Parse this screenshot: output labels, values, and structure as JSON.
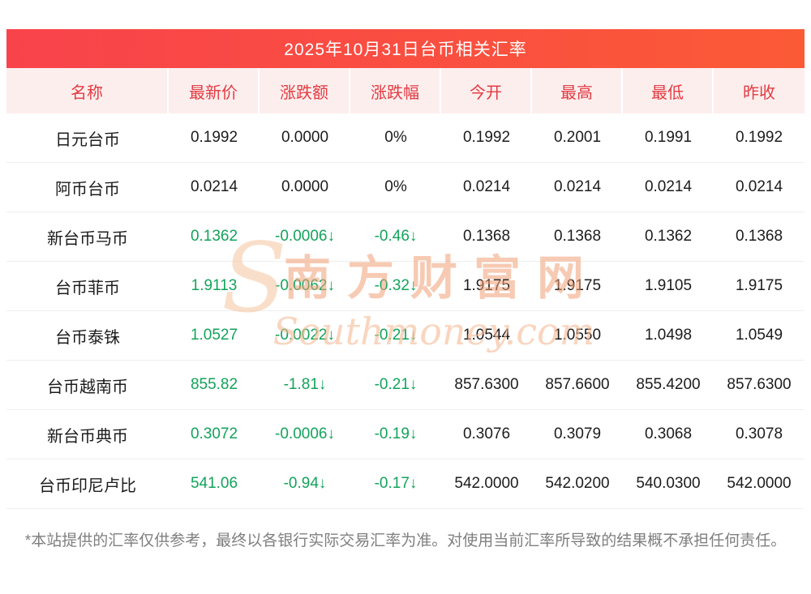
{
  "title": "2025年10月31日台币相关汇率",
  "colors": {
    "accent": "#f8434b",
    "header_bg": "#fdeeee",
    "header_text": "#e23b41",
    "down_green": "#13a35b",
    "footer_gray": "#7f7f7f"
  },
  "watermark": {
    "logo": "S",
    "title": "南方财富网",
    "subtitle": "Southmoney.com"
  },
  "table": {
    "headers": [
      "名称",
      "最新价",
      "涨跌额",
      "涨跌幅",
      "今开",
      "最高",
      "最低",
      "昨收"
    ],
    "rows": [
      {
        "name": "日元台币",
        "latest": "0.1992",
        "change": "0.0000",
        "pct": "0%",
        "open": "0.1992",
        "high": "0.2001",
        "low": "0.1991",
        "prev": "0.1992",
        "trend": "flat"
      },
      {
        "name": "阿币台币",
        "latest": "0.0214",
        "change": "0.0000",
        "pct": "0%",
        "open": "0.0214",
        "high": "0.0214",
        "low": "0.0214",
        "prev": "0.0214",
        "trend": "flat"
      },
      {
        "name": "新台币马币",
        "latest": "0.1362",
        "change": "-0.0006↓",
        "pct": "-0.46↓",
        "open": "0.1368",
        "high": "0.1368",
        "low": "0.1362",
        "prev": "0.1368",
        "trend": "down"
      },
      {
        "name": "台币菲币",
        "latest": "1.9113",
        "change": "-0.0062↓",
        "pct": "-0.32↓",
        "open": "1.9175",
        "high": "1.9175",
        "low": "1.9105",
        "prev": "1.9175",
        "trend": "down"
      },
      {
        "name": "台币泰铢",
        "latest": "1.0527",
        "change": "-0.0022↓",
        "pct": "-0.21↓",
        "open": "1.0544",
        "high": "1.0550",
        "low": "1.0498",
        "prev": "1.0549",
        "trend": "down"
      },
      {
        "name": "台币越南币",
        "latest": "855.82",
        "change": "-1.81↓",
        "pct": "-0.21↓",
        "open": "857.6300",
        "high": "857.6600",
        "low": "855.4200",
        "prev": "857.6300",
        "trend": "down"
      },
      {
        "name": "新台币典币",
        "latest": "0.3072",
        "change": "-0.0006↓",
        "pct": "-0.19↓",
        "open": "0.3076",
        "high": "0.3079",
        "low": "0.3068",
        "prev": "0.3078",
        "trend": "down"
      },
      {
        "name": "台币印尼卢比",
        "latest": "541.06",
        "change": "-0.94↓",
        "pct": "-0.17↓",
        "open": "542.0000",
        "high": "542.0200",
        "low": "540.0300",
        "prev": "542.0000",
        "trend": "down"
      }
    ]
  },
  "footer": "*本站提供的汇率仅供参考，最终以各银行实际交易汇率为准。对使用当前汇率所导致的结果概不承担任何责任。"
}
